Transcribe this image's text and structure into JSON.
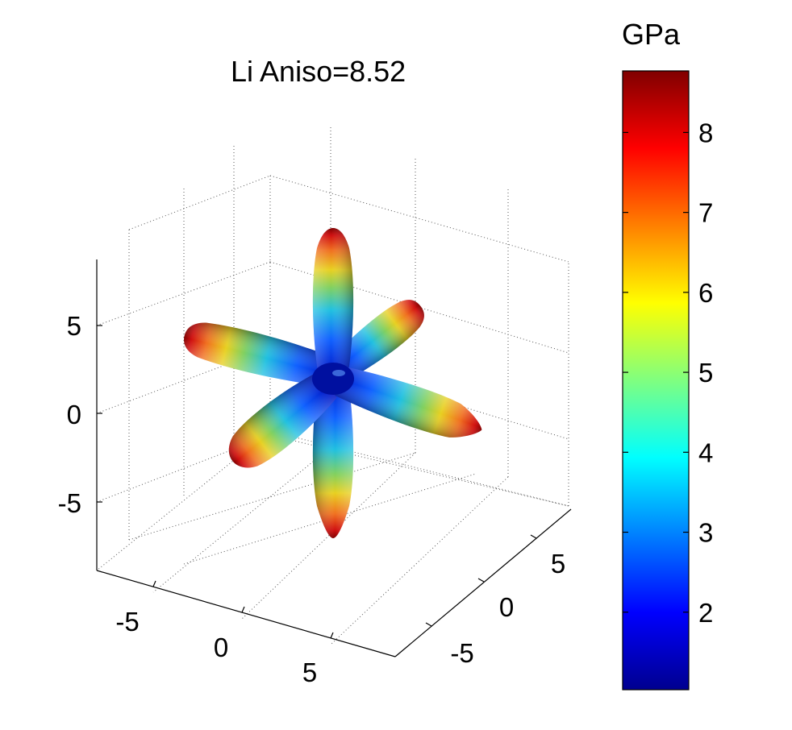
{
  "chart_data": {
    "type": "3d-surface",
    "title": "Li Aniso=8.52",
    "axes": {
      "x": {
        "ticks": [
          -5,
          0,
          5
        ],
        "range": [
          -8.5,
          8.5
        ]
      },
      "y": {
        "ticks": [
          -5,
          0,
          5
        ],
        "range": [
          -8.5,
          8.5
        ]
      },
      "z": {
        "ticks": [
          -5,
          0,
          5
        ],
        "range": [
          -8.5,
          8.5
        ]
      }
    },
    "grid": true,
    "colormap": "jet",
    "colorbar": {
      "label": "GPa",
      "ticks": [
        2,
        3,
        4,
        5,
        6,
        7,
        8
      ],
      "range": [
        1.03,
        8.77
      ],
      "placement": "right"
    },
    "surface": {
      "shape": "six-lobed cross (lobes along ±x, ±y, ±z)",
      "lobe_max": 8.52,
      "center_min": 1.0
    }
  },
  "colors": {
    "low": "#00008f",
    "mid": "#00ffff",
    "high": "#800000"
  }
}
